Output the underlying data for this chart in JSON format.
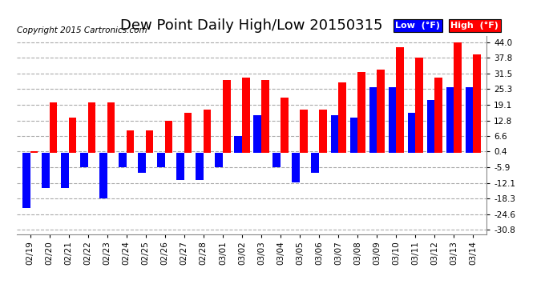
{
  "title": "Dew Point Daily High/Low 20150315",
  "copyright": "Copyright 2015 Cartronics.com",
  "dates": [
    "02/19",
    "02/20",
    "02/21",
    "02/22",
    "02/23",
    "02/24",
    "02/25",
    "02/26",
    "02/27",
    "02/28",
    "03/01",
    "03/02",
    "03/03",
    "03/04",
    "03/05",
    "03/06",
    "03/07",
    "03/08",
    "03/09",
    "03/10",
    "03/11",
    "03/12",
    "03/13",
    "03/14"
  ],
  "high_vals": [
    0.4,
    20.0,
    14.0,
    20.0,
    20.0,
    8.8,
    8.8,
    12.8,
    16.0,
    17.0,
    29.0,
    30.0,
    29.0,
    22.0,
    17.0,
    17.0,
    28.0,
    32.0,
    33.0,
    42.0,
    37.8,
    30.0,
    44.0,
    39.0
  ],
  "low_vals": [
    -22.0,
    -14.0,
    -14.0,
    -5.9,
    -18.3,
    -5.9,
    -8.0,
    -5.9,
    -11.0,
    -11.0,
    -5.9,
    6.6,
    15.0,
    -5.9,
    -12.0,
    -8.0,
    15.0,
    14.0,
    26.0,
    26.0,
    16.0,
    21.0,
    26.0,
    26.0
  ],
  "bar_width": 0.4,
  "high_color": "#ff0000",
  "low_color": "#0000ff",
  "bg_color": "#ffffff",
  "grid_color": "#aaaaaa",
  "ytick_vals": [
    44.0,
    37.8,
    31.5,
    25.3,
    19.1,
    12.8,
    6.6,
    0.4,
    -5.9,
    -12.1,
    -18.3,
    -24.6,
    -30.8
  ],
  "ylim": [
    -32.5,
    46.5
  ],
  "legend_low_label": "Low  (°F)",
  "legend_high_label": "High  (°F)",
  "title_fontsize": 13,
  "copyright_fontsize": 7.5
}
